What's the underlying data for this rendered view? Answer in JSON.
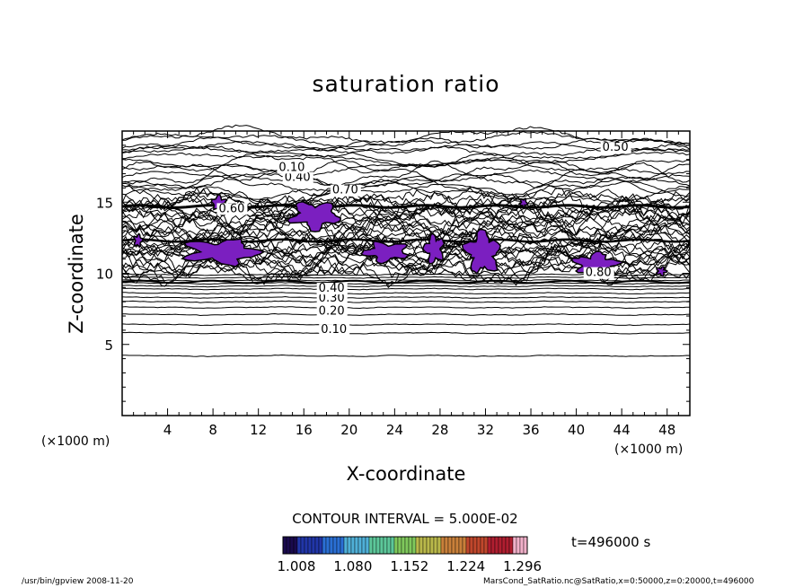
{
  "chart_data": {
    "type": "contour",
    "title": "saturation ratio",
    "xlabel": "X-coordinate",
    "ylabel": "Z-coordinate",
    "x_unit_label": "(×1000 m)",
    "y_unit_label": "(×1000 m)",
    "xlim": [
      0,
      50
    ],
    "ylim": [
      0,
      20
    ],
    "x_ticks": [
      "4",
      "8",
      "12",
      "16",
      "20",
      "24",
      "28",
      "32",
      "36",
      "40",
      "44",
      "48"
    ],
    "y_ticks": [
      "5",
      "10",
      "15"
    ],
    "contour_interval_text": "CONTOUR INTERVAL = 5.000E-02",
    "time_text": "t=496000 s",
    "colorbar_ticks": [
      "1.008",
      "1.080",
      "1.152",
      "1.224",
      "1.296"
    ],
    "contour_labels": [
      {
        "text": "0.10",
        "x": 17.5,
        "z": 5.8
      },
      {
        "text": "0.20",
        "x": 17.3,
        "z": 7.1
      },
      {
        "text": "0.30",
        "x": 17.3,
        "z": 8.0
      },
      {
        "text": "0.40",
        "x": 17.3,
        "z": 8.7
      },
      {
        "text": "0.60",
        "x": 8.5,
        "z": 14.3
      },
      {
        "text": "0.70",
        "x": 18.5,
        "z": 15.6
      },
      {
        "text": "0.40",
        "x": 14.3,
        "z": 16.5
      },
      {
        "text": "0.10",
        "x": 13.8,
        "z": 17.2
      },
      {
        "text": "0.50",
        "x": 42.3,
        "z": 18.6
      },
      {
        "text": "0.80",
        "x": 40.8,
        "z": 9.8
      }
    ],
    "supersaturated_regions": [
      {
        "x": [
          7.8,
          9.2
        ],
        "z": [
          14.4,
          15.5
        ]
      },
      {
        "x": [
          1.0,
          1.8
        ],
        "z": [
          11.8,
          12.8
        ]
      },
      {
        "x": [
          5.0,
          12.5
        ],
        "z": [
          10.5,
          12.5
        ]
      },
      {
        "x": [
          14.5,
          19.5
        ],
        "z": [
          12.9,
          15.2
        ]
      },
      {
        "x": [
          21.0,
          25.5
        ],
        "z": [
          10.7,
          12.3
        ]
      },
      {
        "x": [
          26.5,
          28.5
        ],
        "z": [
          10.6,
          12.9
        ]
      },
      {
        "x": [
          30.0,
          33.5
        ],
        "z": [
          9.8,
          13.1
        ]
      },
      {
        "x": [
          39.5,
          44.0
        ],
        "z": [
          9.8,
          11.5
        ]
      },
      {
        "x": [
          47.0,
          48.0
        ],
        "z": [
          9.8,
          10.5
        ]
      },
      {
        "x": [
          35.0,
          35.7
        ],
        "z": [
          14.6,
          15.3
        ]
      }
    ],
    "colormap": [
      "#1a0a4e",
      "#2136a8",
      "#2a6fd4",
      "#4fb0d8",
      "#5cc79a",
      "#7fc85c",
      "#b9b84a",
      "#c9803a",
      "#c0472c",
      "#b01e30",
      "#f1b0c9"
    ],
    "colorbar_range": [
      1.008,
      1.296
    ]
  },
  "footer": {
    "left": "/usr/bin/gpview   2008-11-20",
    "right": "MarsCond_SatRatio.nc@SatRatio,x=0:50000,z=0:20000,t=496000"
  }
}
